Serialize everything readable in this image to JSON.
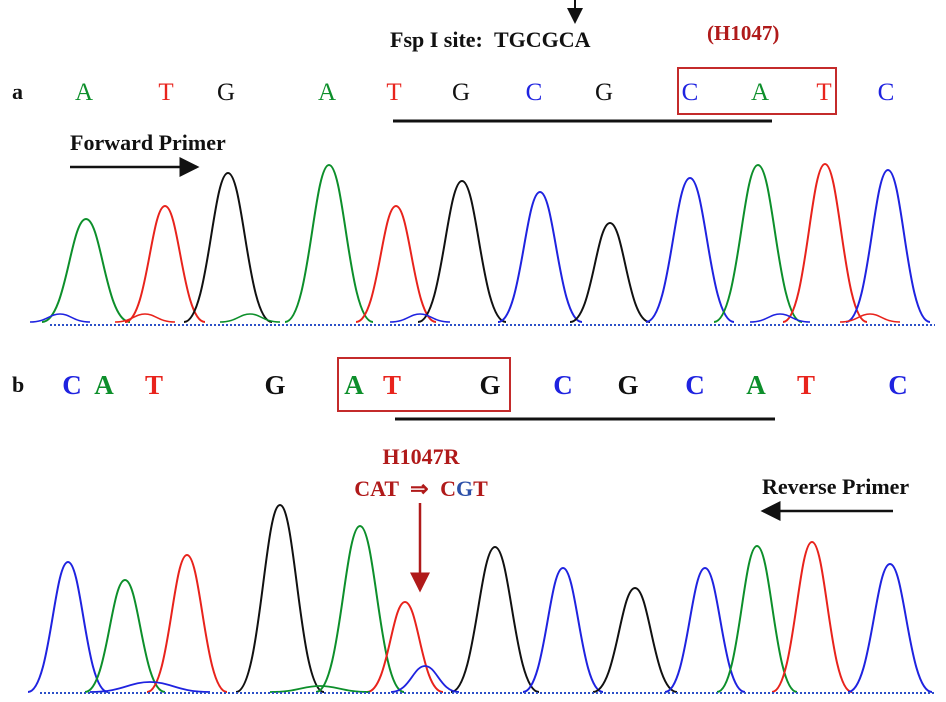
{
  "colors": {
    "A": "#0d8f2b",
    "C": "#1f23e0",
    "G": "#111111",
    "T": "#e8231c",
    "accent_red": "#b01a1a",
    "substitution_blue": "#2c50a8"
  },
  "site": {
    "label": "Fsp I site:",
    "sequence": "TGCGCA",
    "codon_label": "(H1047)"
  },
  "panel_a": {
    "letter": "a",
    "bases": [
      "A",
      "T",
      "G",
      "A",
      "T",
      "G",
      "C",
      "G",
      "C",
      "A",
      "T",
      "C"
    ],
    "primer": "Forward Primer"
  },
  "panel_b": {
    "letter": "b",
    "bases": [
      "C",
      "A",
      "T",
      "G",
      "A",
      "T",
      "G",
      "C",
      "G",
      "C",
      "A",
      "T",
      "C"
    ],
    "mutation": "H1047R",
    "change_from": "CAT",
    "change_arrow": "⇒",
    "change_to_prefix": "C",
    "change_to_sub": "G",
    "change_to_suffix": "T",
    "primer": "Reverse Primer"
  }
}
